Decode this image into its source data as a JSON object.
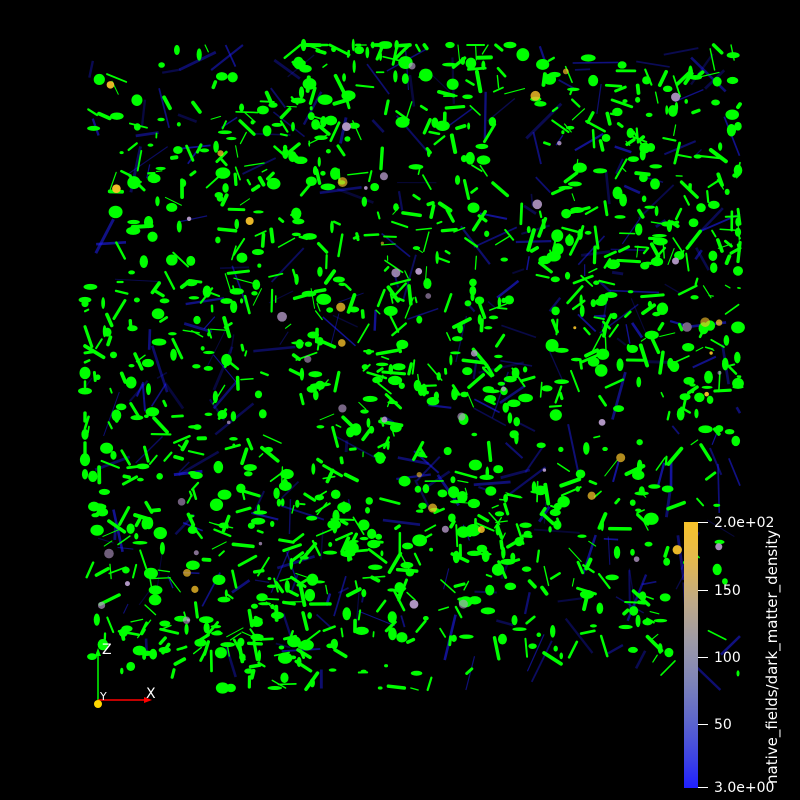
{
  "render": {
    "background": "#000000",
    "isosurface_color": "#00ff00",
    "filament_color_low": "#2020ff",
    "filament_color_high": "#f7c22a"
  },
  "orientation_axes": {
    "z_label": "Z",
    "y_label": "Y",
    "x_label": "X",
    "z_color": "#00ff00",
    "y_color": "#ffd700",
    "x_color": "#ff0000"
  },
  "scalar_bar": {
    "title": "native_fields/dark_matter_density",
    "max_label": "2.0e+02",
    "min_label": "3.0e+00",
    "ticks": [
      "150",
      "100",
      "50"
    ],
    "range": [
      3.0,
      200.0
    ],
    "colormap_top": "#f7c22a",
    "colormap_bottom": "#2020ff"
  }
}
